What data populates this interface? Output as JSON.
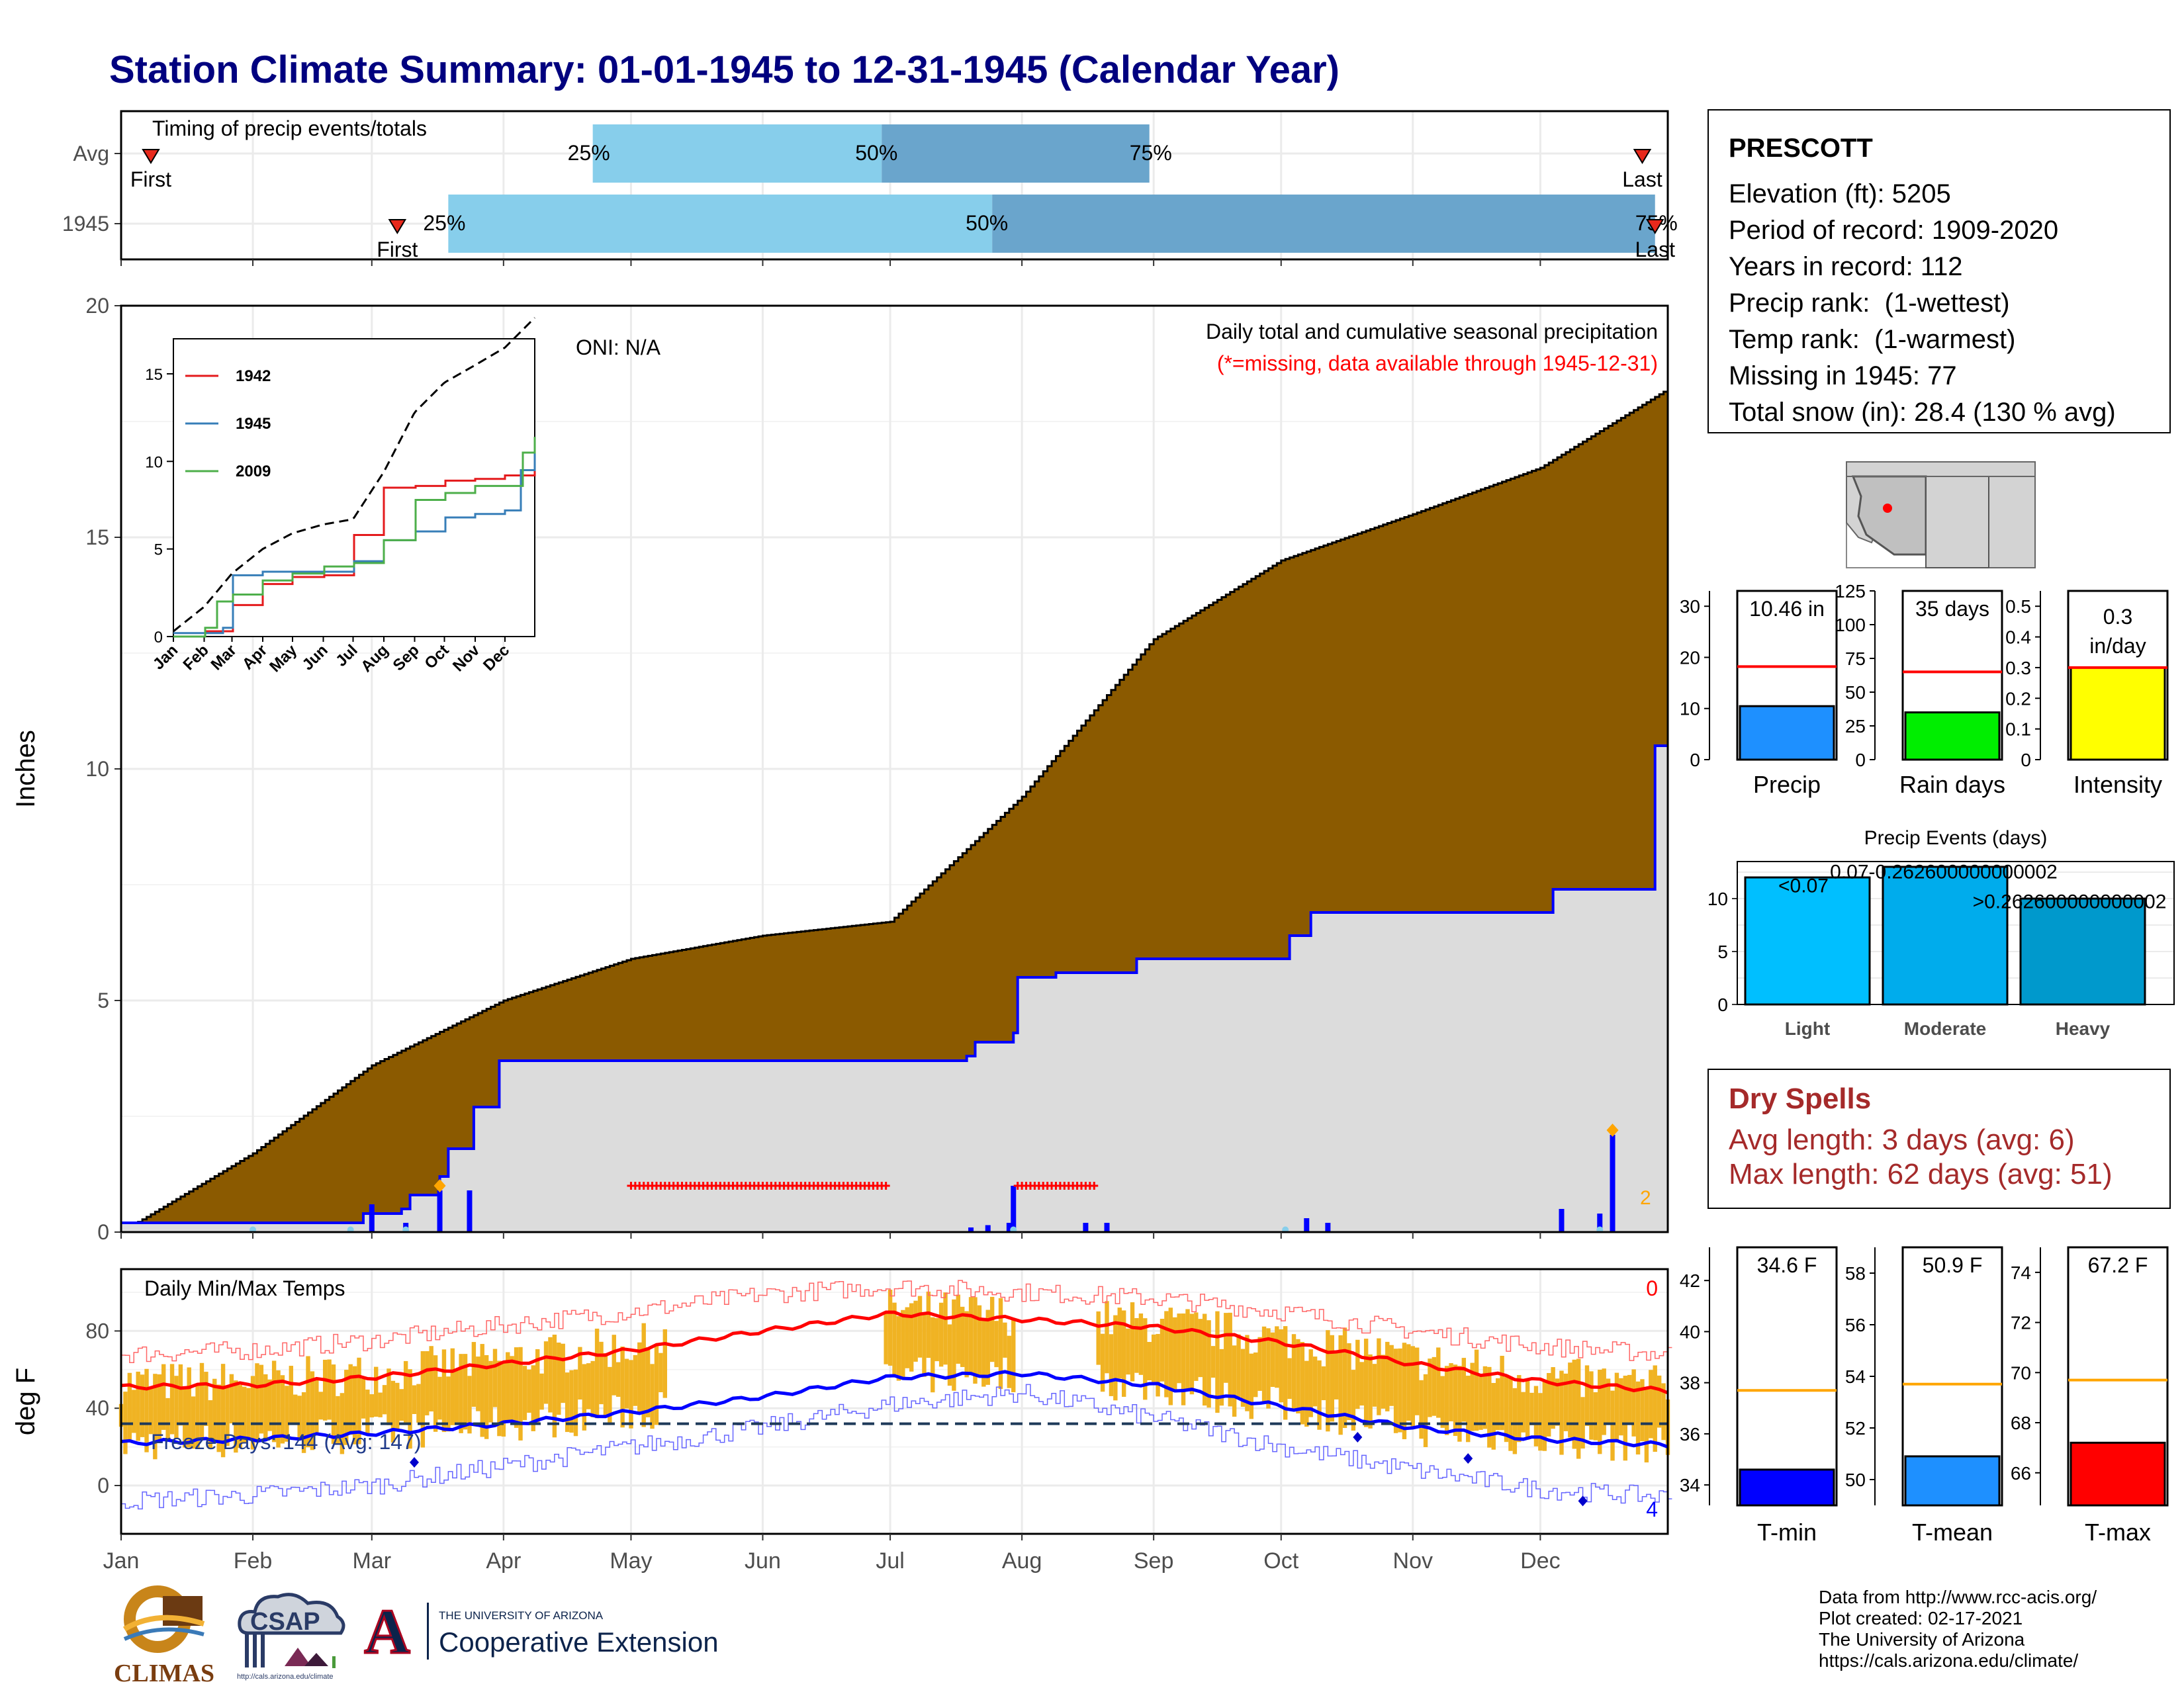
{
  "title": "Station Climate Summary: 01-01-1945 to 12-31-1945 (Calendar Year)",
  "months": [
    "Jan",
    "Feb",
    "Mar",
    "Apr",
    "May",
    "Jun",
    "Jul",
    "Aug",
    "Sep",
    "Oct",
    "Nov",
    "Dec"
  ],
  "timing": {
    "label": "Timing of precip events/totals",
    "rows": [
      {
        "name": "Avg",
        "first_day": 8,
        "p25_day": 112,
        "p50_day": 180,
        "p75_day": 243,
        "last_day": 359
      },
      {
        "name": "1945",
        "first_day": 66,
        "p25_day": 78,
        "p50_day": 206,
        "p75_day": 362,
        "last_day": 362
      }
    ],
    "first_label": "First",
    "last_label": "Last",
    "pct_labels": [
      "25%",
      "50%",
      "75%"
    ],
    "colors": {
      "light": "#87ceeb",
      "dark": "#6aa5cc",
      "marker": "#e8291c"
    }
  },
  "precip_chart": {
    "ylabel": "Inches",
    "annot_title": "Daily total and cumulative seasonal precipitation",
    "annot_missing": "(*=missing, data available through 1945-12-31)",
    "oni": "ONI: N/A",
    "count_label": "2",
    "colors": {
      "fill_avg": "#8b5a00",
      "fill_year": "#dcdcdc",
      "line_year": "#0000ff",
      "daily": "#0000ff",
      "missing": "#ff0000",
      "marker": "#ffa500"
    }
  },
  "chart_data": [
    {
      "type": "area",
      "title": "Daily total and cumulative seasonal precipitation",
      "ylabel": "Inches",
      "ylim": [
        0,
        20
      ],
      "x_unit": "day of year",
      "yticks": [
        0,
        5,
        10,
        15,
        20
      ],
      "series": [
        {
          "name": "Average cumulative",
          "x": [
            1,
            32,
            60,
            91,
            121,
            152,
            182,
            213,
            244,
            274,
            305,
            335,
            365
          ],
          "values": [
            0,
            1.7,
            3.6,
            5.0,
            5.9,
            6.4,
            6.7,
            9.4,
            12.8,
            14.5,
            15.5,
            16.5,
            18.2
          ]
        },
        {
          "name": "1945 cumulative",
          "x": [
            1,
            50,
            58,
            67,
            69,
            75,
            76,
            78,
            83,
            84,
            90,
            172,
            200,
            202,
            211,
            212,
            221,
            240,
            276,
            281,
            338,
            362,
            365
          ],
          "values": [
            0.2,
            0.2,
            0.4,
            0.5,
            0.8,
            0.8,
            1.2,
            1.8,
            1.8,
            2.7,
            3.7,
            3.7,
            3.8,
            4.1,
            4.3,
            5.5,
            5.6,
            5.9,
            6.4,
            6.9,
            7.4,
            10.5,
            10.5
          ]
        }
      ],
      "missing_ranges": [
        [
          121,
          181
        ],
        [
          212,
          230
        ]
      ],
      "daily_bars": [
        {
          "day": 60,
          "value": 0.6
        },
        {
          "day": 68,
          "value": 0.2
        },
        {
          "day": 76,
          "value": 0.9
        },
        {
          "day": 83,
          "value": 0.9
        },
        {
          "day": 201,
          "value": 0.1
        },
        {
          "day": 205,
          "value": 0.15
        },
        {
          "day": 210,
          "value": 0.2
        },
        {
          "day": 211,
          "value": 1.0
        },
        {
          "day": 228,
          "value": 0.2
        },
        {
          "day": 233,
          "value": 0.2
        },
        {
          "day": 280,
          "value": 0.3
        },
        {
          "day": 285,
          "value": 0.2
        },
        {
          "day": 340,
          "value": 0.5
        },
        {
          "day": 349,
          "value": 0.4
        },
        {
          "day": 352,
          "value": 2.1
        }
      ]
    },
    {
      "type": "line",
      "title": "inset cumulative precipitation",
      "ylim": [
        0,
        17
      ],
      "yticks": [
        0,
        5,
        10,
        15
      ],
      "series": [
        {
          "name": "1942",
          "color": "#e41a1c",
          "x": [
            1,
            32,
            60,
            91,
            121,
            152,
            182,
            213,
            244,
            274,
            305,
            335,
            365
          ],
          "values": [
            0,
            0.3,
            1.8,
            3.0,
            3.4,
            3.5,
            5.8,
            8.5,
            8.6,
            8.9,
            9.0,
            9.2,
            10.0
          ]
        },
        {
          "name": "1945",
          "color": "#377eb8",
          "x": [
            1,
            50,
            60,
            91,
            152,
            182,
            213,
            244,
            274,
            305,
            335,
            350,
            365
          ],
          "values": [
            0.2,
            0.5,
            3.5,
            3.7,
            3.7,
            4.3,
            5.5,
            6.0,
            6.8,
            7.0,
            7.2,
            9.5,
            10.5
          ]
        },
        {
          "name": "2009",
          "color": "#4daf4a",
          "x": [
            1,
            32,
            45,
            60,
            91,
            121,
            152,
            182,
            213,
            244,
            274,
            305,
            335,
            352,
            365
          ],
          "values": [
            0,
            0.5,
            2.0,
            2.4,
            3.2,
            3.6,
            4.0,
            4.2,
            5.5,
            7.8,
            8.2,
            8.6,
            8.6,
            10.5,
            11.4
          ]
        },
        {
          "name": "Average",
          "color": "#000000",
          "x": [
            1,
            32,
            60,
            91,
            121,
            152,
            182,
            213,
            244,
            274,
            305,
            335,
            365
          ],
          "values": [
            0.3,
            1.7,
            3.6,
            5.0,
            5.9,
            6.4,
            6.7,
            9.4,
            12.8,
            14.5,
            15.5,
            16.5,
            18.2
          ]
        }
      ]
    },
    {
      "type": "bar",
      "title": "",
      "categories": [
        "Precip"
      ],
      "values": [
        10.46
      ],
      "label": "10.46 in",
      "avg": 18.2,
      "ylim": [
        0,
        33
      ],
      "yticks": [
        0,
        10,
        20,
        30
      ]
    },
    {
      "type": "bar",
      "categories": [
        "Rain days"
      ],
      "values": [
        35
      ],
      "label": "35 days",
      "avg": 65,
      "ylim": [
        0,
        125
      ],
      "yticks": [
        0,
        25,
        50,
        75,
        100,
        125
      ]
    },
    {
      "type": "bar",
      "categories": [
        "Intensity"
      ],
      "values": [
        0.3
      ],
      "label": "0.3 in/day",
      "avg": 0.3,
      "ylim": [
        0,
        0.55
      ],
      "yticks": [
        0.0,
        0.1,
        0.2,
        0.3,
        0.4,
        0.5
      ]
    },
    {
      "type": "bar",
      "title": "Precip Events (days)",
      "categories": [
        "Light",
        "Moderate",
        "Heavy"
      ],
      "values": [
        12,
        13,
        10
      ],
      "bar_labels": [
        "<0.07",
        "0.07-0.262600000000002",
        ">0.262600000000002"
      ],
      "ylim": [
        0,
        13.5
      ],
      "yticks": [
        0,
        5,
        10
      ]
    },
    {
      "type": "line",
      "title": "Daily Min/Max Temps",
      "ylabel": "deg F",
      "ylim": [
        -25,
        112
      ],
      "yticks": [
        0,
        40,
        80
      ],
      "series": [
        {
          "name": "Avg max",
          "x": [
            1,
            32,
            60,
            91,
            121,
            152,
            182,
            213,
            244,
            274,
            305,
            335,
            365
          ],
          "values": [
            51,
            52,
            56,
            63,
            70,
            80,
            89,
            86,
            82,
            74,
            63,
            54,
            49
          ]
        },
        {
          "name": "Avg min",
          "x": [
            1,
            32,
            60,
            91,
            121,
            152,
            182,
            213,
            244,
            274,
            305,
            335,
            365
          ],
          "values": [
            22,
            24,
            27,
            32,
            38,
            46,
            56,
            58,
            52,
            41,
            30,
            24,
            21
          ]
        },
        {
          "name": "Record max",
          "x": [
            1,
            32,
            60,
            91,
            121,
            152,
            182,
            213,
            244,
            274,
            305,
            335,
            365
          ],
          "values": [
            68,
            70,
            75,
            83,
            90,
            99,
            103,
            100,
            97,
            90,
            80,
            72,
            68
          ]
        },
        {
          "name": "Record min",
          "x": [
            1,
            32,
            60,
            91,
            121,
            152,
            182,
            213,
            244,
            274,
            305,
            335,
            365
          ],
          "values": [
            -8,
            -5,
            0,
            10,
            20,
            30,
            42,
            48,
            35,
            20,
            8,
            -2,
            -6
          ]
        }
      ],
      "freeze_line": 32,
      "missing_temp_ranges": [
        [
          130,
          180
        ],
        [
          212,
          230
        ]
      ],
      "freeze_label": "Freeze Days: 144 (Avg: 147)",
      "record_high_count": "0",
      "record_low_count": "4"
    },
    {
      "type": "bar",
      "categories": [
        "T-min"
      ],
      "values": [
        34.6
      ],
      "label": "34.6 F",
      "avg": 37.7,
      "ylim": [
        33.2,
        43.3
      ],
      "yticks": [
        34,
        36,
        38,
        40,
        42
      ]
    },
    {
      "type": "bar",
      "categories": [
        "T-mean"
      ],
      "values": [
        50.9
      ],
      "label": "50.9 F",
      "avg": 53.7,
      "ylim": [
        49.0,
        59.0
      ],
      "yticks": [
        50,
        52,
        54,
        56,
        58
      ]
    },
    {
      "type": "bar",
      "categories": [
        "T-max"
      ],
      "values": [
        67.2
      ],
      "label": "67.2 F",
      "avg": 69.7,
      "ylim": [
        64.7,
        75.0
      ],
      "yticks": [
        66,
        68,
        70,
        72,
        74
      ]
    }
  ],
  "station": {
    "name": "PRESCOTT",
    "lines": [
      "Elevation (ft): 5205",
      "Period of record: 1909-2020",
      "Years in record: 112",
      "Precip rank:  (1-wettest)",
      "Temp rank:  (1-warmest)",
      "Missing in 1945: 77",
      "Total snow (in): 28.4 (130 % avg)"
    ]
  },
  "dry_spells": {
    "title": "Dry Spells",
    "avg": "Avg length: 3 days (avg: 6)",
    "max": "Max length: 62 days (avg: 51)",
    "color": "#a52a2a"
  },
  "footer": {
    "lines": [
      "Data from http://www.rcc-acis.org/",
      "Plot created: 02-17-2021",
      "The University of Arizona",
      "https://cals.arizona.edu/climate/"
    ],
    "logo_climas": "CLIMAS",
    "logo_csap": "CSAP",
    "logo_csap_url": "http://cals.arizona.edu/climate",
    "logo_ua_top": "THE UNIVERSITY OF ARIZONA",
    "logo_ua_bottom": "Cooperative Extension",
    "logo_ua_letter": "A"
  }
}
